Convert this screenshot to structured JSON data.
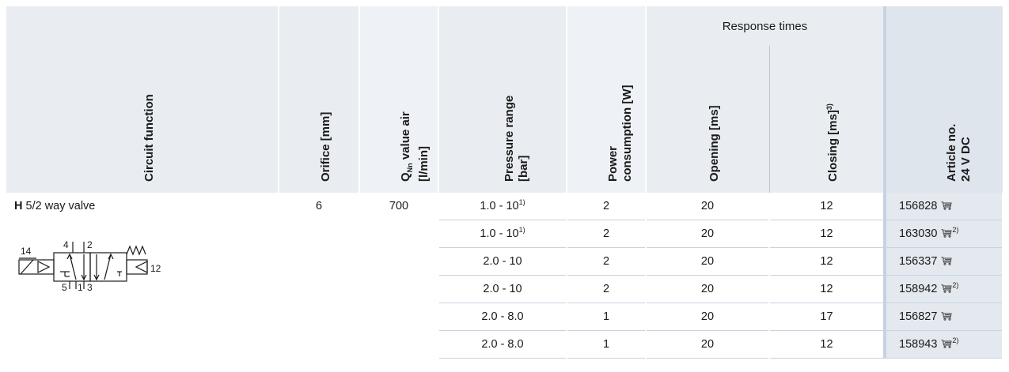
{
  "headers": {
    "circuit_function": "Circuit function",
    "orifice": "Orifice [mm]",
    "qnn_prefix": "Q",
    "qnn_sub": "Nn",
    "qnn_rest": " value air",
    "qnn_unit": "[l/min]",
    "pressure_line1": "Pressure range",
    "pressure_line2": "[bar]",
    "power_line1": "Power",
    "power_line2": "consumption [W]",
    "response_times": "Response times",
    "opening": "Opening [ms]",
    "closing": "Closing [ms]",
    "closing_sup": "3)",
    "article_line1": "Article no.",
    "article_line2": "24 V DC"
  },
  "product": {
    "code": "H",
    "name": "5/2 way valve",
    "orifice": "6",
    "qnn": "700",
    "ports": {
      "p14": "14",
      "p4": "4",
      "p2": "2",
      "p12": "12",
      "p5": "5",
      "p1": "1",
      "p3": "3"
    }
  },
  "rows": [
    {
      "pressure": "1.0 - 10",
      "pressure_sup": "1)",
      "power": "2",
      "opening": "20",
      "closing": "12",
      "article": "156828",
      "article_sup": ""
    },
    {
      "pressure": "1.0 - 10",
      "pressure_sup": "1)",
      "power": "2",
      "opening": "20",
      "closing": "12",
      "article": "163030",
      "article_sup": "2)"
    },
    {
      "pressure": "2.0 - 10",
      "pressure_sup": "",
      "power": "2",
      "opening": "20",
      "closing": "12",
      "article": "156337",
      "article_sup": ""
    },
    {
      "pressure": "2.0 - 10",
      "pressure_sup": "",
      "power": "2",
      "opening": "20",
      "closing": "12",
      "article": "158942",
      "article_sup": "2)"
    },
    {
      "pressure": "2.0 - 8.0",
      "pressure_sup": "",
      "power": "1",
      "opening": "20",
      "closing": "17",
      "article": "156827",
      "article_sup": ""
    },
    {
      "pressure": "2.0 - 8.0",
      "pressure_sup": "",
      "power": "1",
      "opening": "20",
      "closing": "12",
      "article": "158943",
      "article_sup": "2)"
    }
  ],
  "icons": {
    "cart": "shopping-cart-icon",
    "valve": "valve-symbol-icon"
  }
}
